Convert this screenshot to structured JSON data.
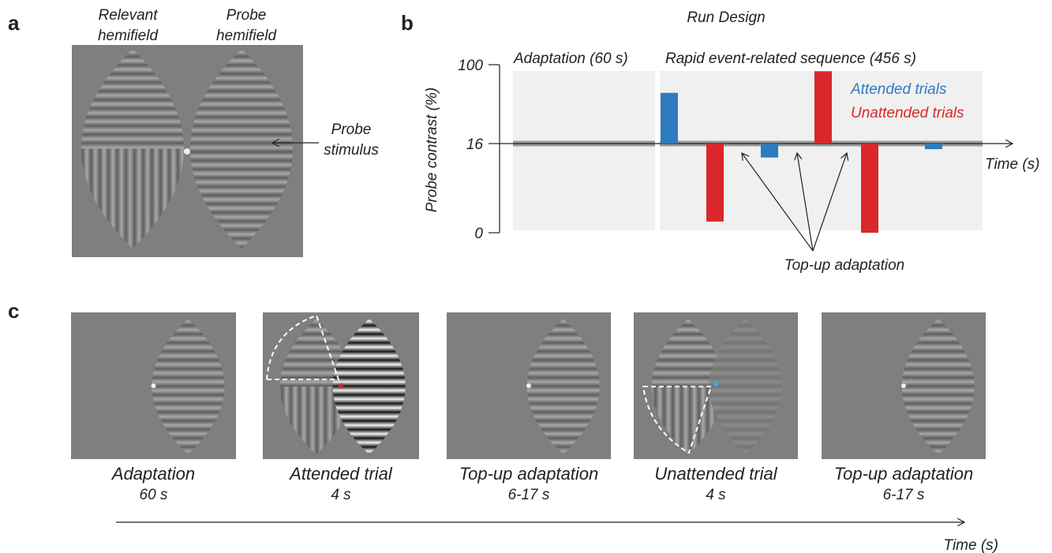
{
  "panel_labels": [
    "a",
    "b",
    "c"
  ],
  "panel_a": {
    "relevant_label": [
      "Relevant",
      "hemifield"
    ],
    "probe_label": [
      "Probe",
      "hemifield"
    ],
    "probe_stimulus": [
      "Probe",
      "stimulus"
    ]
  },
  "panel_b": {
    "title": "Run Design",
    "y_label": "Probe contrast (%)",
    "x_label": "Time (s)",
    "yticks": [
      100,
      16,
      0
    ],
    "sections": [
      "Adaptation (60 s)",
      "Rapid event-related sequence (456 s)"
    ],
    "legend": [
      {
        "name": "Attended trials",
        "color": "#2e7bbf"
      },
      {
        "name": "Unattended trials",
        "color": "#d9272b"
      }
    ],
    "bars": [
      {
        "series": 0,
        "value": 70
      },
      {
        "series": 1,
        "value": 2
      },
      {
        "series": 0,
        "value": 13.5
      },
      {
        "series": 1,
        "value": 93
      },
      {
        "series": 1,
        "value": 0
      },
      {
        "series": 0,
        "value": 15
      }
    ],
    "annotation": "Top-up adaptation"
  },
  "panel_c": {
    "frames": [
      {
        "title": "Adaptation",
        "duration": "60 s"
      },
      {
        "title": "Attended trial",
        "duration": "4 s"
      },
      {
        "title": "Top-up adaptation",
        "duration": "6-17 s"
      },
      {
        "title": "Unattended trial",
        "duration": "4 s"
      },
      {
        "title": "Top-up adaptation",
        "duration": "6-17 s"
      }
    ],
    "time_label": "Time (s)"
  }
}
